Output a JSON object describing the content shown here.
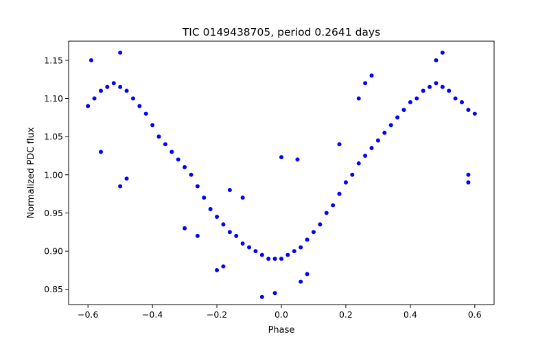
{
  "chart_data": {
    "type": "scatter",
    "title": "TIC 0149438705, period 0.2641 days",
    "xlabel": "Phase",
    "ylabel": "Normalized PDC flux",
    "xlim": [
      -0.66,
      0.66
    ],
    "ylim": [
      0.83,
      1.175
    ],
    "xticks": [
      -0.6,
      -0.4,
      -0.2,
      0.0,
      0.2,
      0.4,
      0.6
    ],
    "xtick_labels": [
      "−0.6",
      "−0.4",
      "−0.2",
      "0.0",
      "0.2",
      "0.4",
      "0.6"
    ],
    "yticks": [
      0.85,
      0.9,
      0.95,
      1.0,
      1.05,
      1.1,
      1.15
    ],
    "ytick_labels": [
      "0.85",
      "0.90",
      "0.95",
      "1.00",
      "1.05",
      "1.10",
      "1.15"
    ],
    "grid": false,
    "marker_color": "#0000ff",
    "series": [
      {
        "points": [
          [
            -0.6,
            1.09
          ],
          [
            -0.58,
            1.1
          ],
          [
            -0.56,
            1.11
          ],
          [
            -0.54,
            1.115
          ],
          [
            -0.52,
            1.12
          ],
          [
            -0.5,
            1.115
          ],
          [
            -0.48,
            1.11
          ],
          [
            -0.46,
            1.1
          ],
          [
            -0.44,
            1.09
          ],
          [
            -0.42,
            1.08
          ],
          [
            -0.4,
            1.065
          ],
          [
            -0.38,
            1.05
          ],
          [
            -0.36,
            1.04
          ],
          [
            -0.34,
            1.03
          ],
          [
            -0.32,
            1.02
          ],
          [
            -0.3,
            1.01
          ],
          [
            -0.28,
            1.0
          ],
          [
            -0.26,
            0.985
          ],
          [
            -0.24,
            0.97
          ],
          [
            -0.22,
            0.955
          ],
          [
            -0.2,
            0.945
          ],
          [
            -0.18,
            0.935
          ],
          [
            -0.16,
            0.925
          ],
          [
            -0.14,
            0.92
          ],
          [
            -0.12,
            0.91
          ],
          [
            -0.1,
            0.905
          ],
          [
            -0.08,
            0.9
          ],
          [
            -0.06,
            0.895
          ],
          [
            -0.04,
            0.89
          ],
          [
            -0.02,
            0.89
          ],
          [
            0.0,
            0.89
          ],
          [
            0.02,
            0.895
          ],
          [
            0.04,
            0.9
          ],
          [
            0.06,
            0.905
          ],
          [
            0.08,
            0.915
          ],
          [
            0.1,
            0.925
          ],
          [
            0.12,
            0.935
          ],
          [
            0.14,
            0.95
          ],
          [
            0.16,
            0.96
          ],
          [
            0.18,
            0.975
          ],
          [
            0.2,
            0.99
          ],
          [
            0.22,
            1.0
          ],
          [
            0.24,
            1.015
          ],
          [
            0.26,
            1.025
          ],
          [
            0.28,
            1.035
          ],
          [
            0.3,
            1.045
          ],
          [
            0.32,
            1.055
          ],
          [
            0.34,
            1.065
          ],
          [
            0.36,
            1.075
          ],
          [
            0.38,
            1.085
          ],
          [
            0.4,
            1.095
          ],
          [
            0.42,
            1.1
          ],
          [
            0.44,
            1.11
          ],
          [
            0.46,
            1.115
          ],
          [
            0.48,
            1.12
          ],
          [
            0.5,
            1.115
          ],
          [
            0.52,
            1.11
          ],
          [
            0.54,
            1.1
          ],
          [
            0.56,
            1.095
          ],
          [
            0.58,
            1.085
          ],
          [
            0.6,
            1.08
          ],
          [
            -0.59,
            1.15
          ],
          [
            -0.5,
            1.16
          ],
          [
            -0.56,
            1.03
          ],
          [
            -0.5,
            0.985
          ],
          [
            -0.48,
            0.995
          ],
          [
            -0.06,
            0.84
          ],
          [
            -0.02,
            0.845
          ],
          [
            0.0,
            1.023
          ],
          [
            0.05,
            1.02
          ],
          [
            0.5,
            1.16
          ],
          [
            0.48,
            1.15
          ],
          [
            0.58,
            1.0
          ],
          [
            0.58,
            0.99
          ],
          [
            -0.16,
            0.98
          ],
          [
            -0.12,
            0.97
          ],
          [
            0.18,
            1.04
          ],
          [
            0.24,
            1.1
          ],
          [
            0.26,
            1.12
          ],
          [
            0.28,
            1.13
          ],
          [
            -0.3,
            0.93
          ],
          [
            -0.26,
            0.92
          ],
          [
            0.06,
            0.86
          ],
          [
            0.08,
            0.87
          ],
          [
            -0.18,
            0.88
          ],
          [
            -0.2,
            0.875
          ]
        ]
      }
    ]
  }
}
